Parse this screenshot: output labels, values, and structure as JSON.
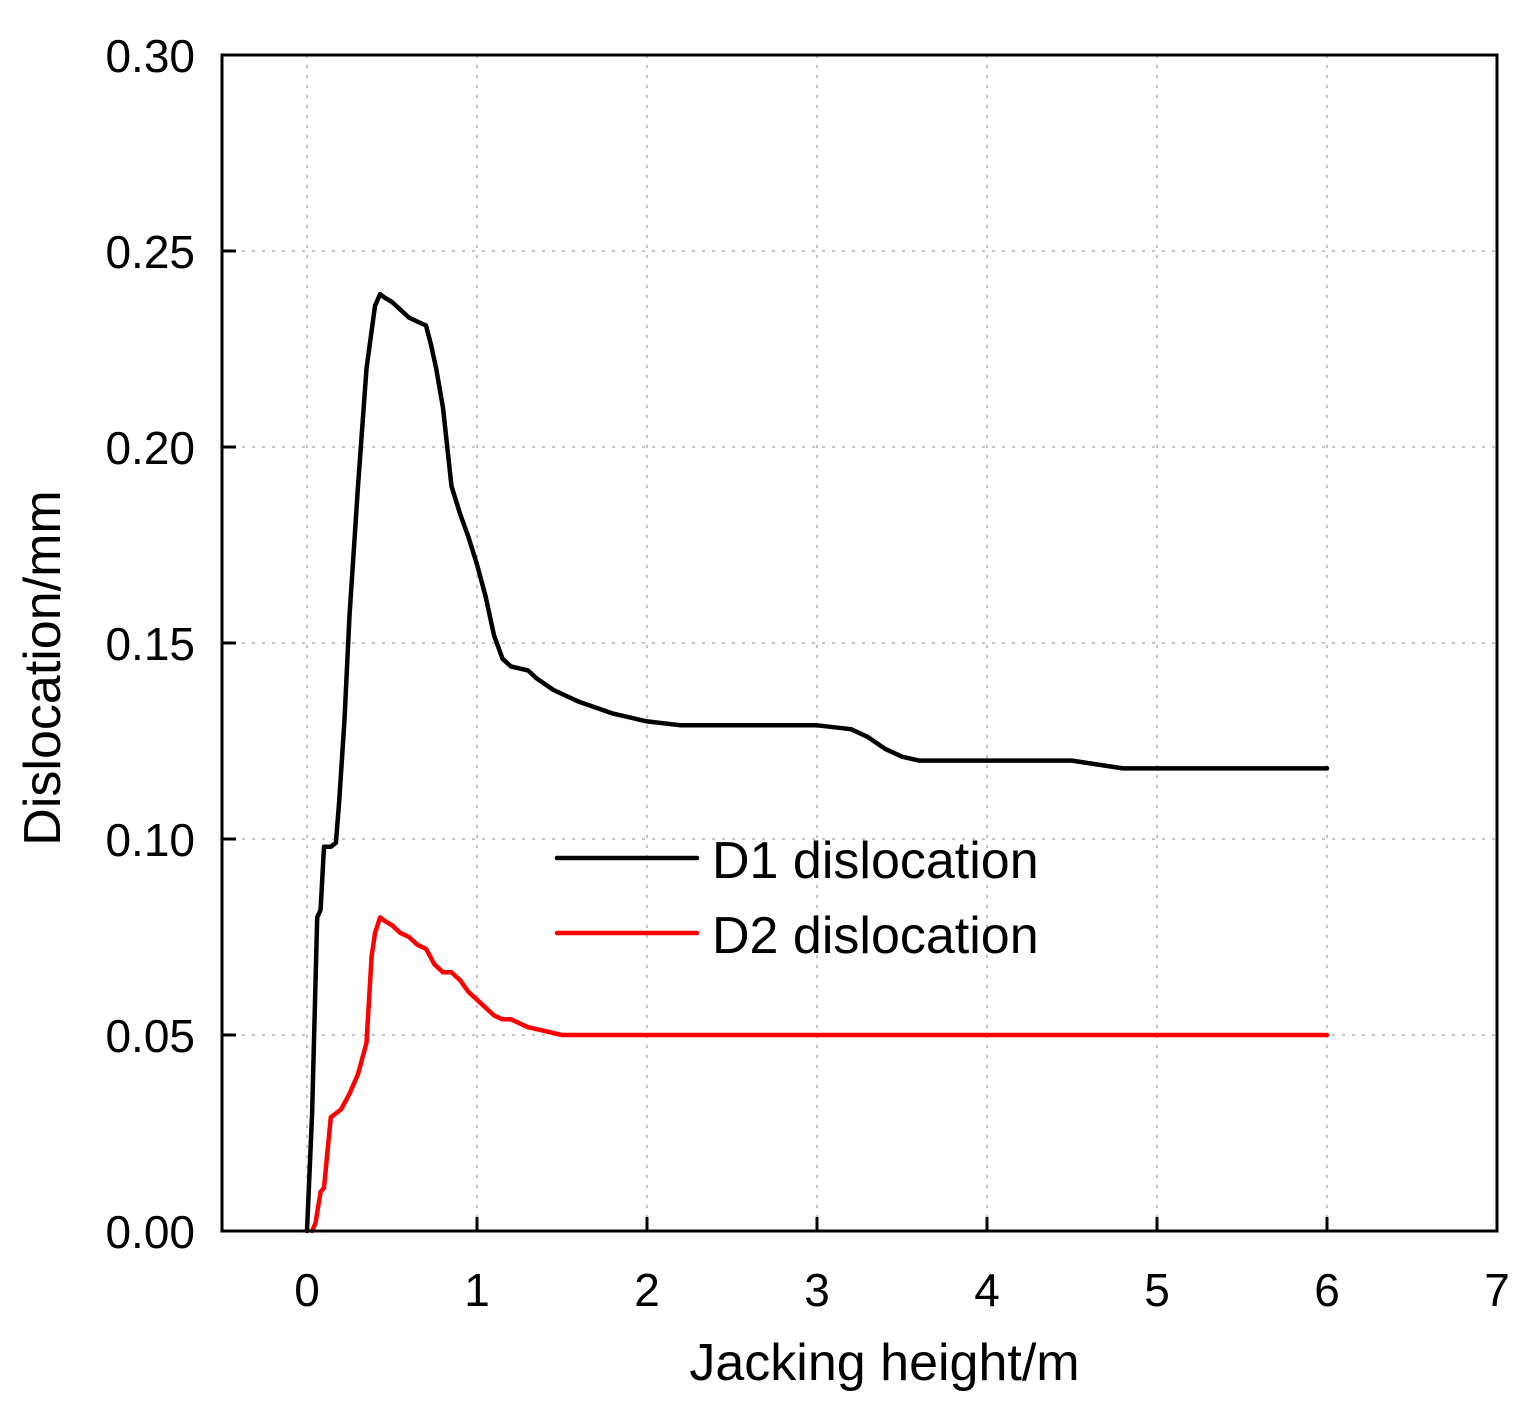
{
  "chart_data": {
    "type": "line",
    "title": "",
    "xlabel": "Jacking height/m",
    "ylabel": "Dislocation/mm",
    "xlim": [
      -0.5,
      7
    ],
    "ylim": [
      0,
      0.3
    ],
    "x_ticks": [
      0,
      1,
      2,
      3,
      4,
      5,
      6,
      7
    ],
    "x_tick_labels": [
      "0",
      "1",
      "2",
      "3",
      "4",
      "5",
      "6",
      "7"
    ],
    "y_ticks": [
      0,
      0.05,
      0.1,
      0.15,
      0.2,
      0.25,
      0.3
    ],
    "y_tick_labels": [
      "0.00",
      "0.05",
      "0.10",
      "0.15",
      "0.20",
      "0.25",
      "0.30"
    ],
    "grid": true,
    "legend_position": "center",
    "series": [
      {
        "name": "D1 dislocation",
        "color": "#000000",
        "x": [
          0.0,
          0.03,
          0.06,
          0.08,
          0.1,
          0.12,
          0.14,
          0.17,
          0.19,
          0.22,
          0.25,
          0.3,
          0.35,
          0.4,
          0.43,
          0.46,
          0.5,
          0.55,
          0.6,
          0.65,
          0.7,
          0.73,
          0.76,
          0.8,
          0.85,
          0.9,
          0.95,
          1.0,
          1.05,
          1.1,
          1.15,
          1.2,
          1.3,
          1.35,
          1.45,
          1.6,
          1.8,
          2.0,
          2.2,
          2.5,
          2.8,
          3.0,
          3.2,
          3.3,
          3.4,
          3.5,
          3.6,
          3.7,
          4.0,
          4.5,
          4.8,
          5.0,
          5.5,
          6.0
        ],
        "values": [
          0.0,
          0.03,
          0.08,
          0.082,
          0.098,
          0.098,
          0.098,
          0.099,
          0.11,
          0.13,
          0.157,
          0.19,
          0.22,
          0.236,
          0.239,
          0.238,
          0.237,
          0.235,
          0.233,
          0.232,
          0.231,
          0.226,
          0.22,
          0.21,
          0.19,
          0.183,
          0.177,
          0.17,
          0.162,
          0.152,
          0.146,
          0.144,
          0.143,
          0.141,
          0.138,
          0.135,
          0.132,
          0.13,
          0.129,
          0.129,
          0.129,
          0.129,
          0.128,
          0.126,
          0.123,
          0.121,
          0.12,
          0.12,
          0.12,
          0.12,
          0.118,
          0.118,
          0.118,
          0.118
        ]
      },
      {
        "name": "D2 dislocation",
        "color": "#ff0000",
        "x": [
          0.03,
          0.05,
          0.08,
          0.1,
          0.12,
          0.14,
          0.17,
          0.2,
          0.25,
          0.3,
          0.35,
          0.38,
          0.4,
          0.43,
          0.46,
          0.5,
          0.55,
          0.6,
          0.65,
          0.7,
          0.75,
          0.8,
          0.85,
          0.9,
          0.95,
          1.0,
          1.05,
          1.1,
          1.15,
          1.2,
          1.3,
          1.4,
          1.5,
          1.7,
          2.0,
          3.0,
          4.0,
          5.0,
          6.0
        ],
        "values": [
          0.0,
          0.002,
          0.01,
          0.011,
          0.02,
          0.029,
          0.03,
          0.031,
          0.035,
          0.04,
          0.048,
          0.07,
          0.076,
          0.08,
          0.079,
          0.078,
          0.076,
          0.075,
          0.073,
          0.072,
          0.068,
          0.066,
          0.066,
          0.064,
          0.061,
          0.059,
          0.057,
          0.055,
          0.054,
          0.054,
          0.052,
          0.051,
          0.05,
          0.05,
          0.05,
          0.05,
          0.05,
          0.05,
          0.05
        ]
      }
    ]
  }
}
